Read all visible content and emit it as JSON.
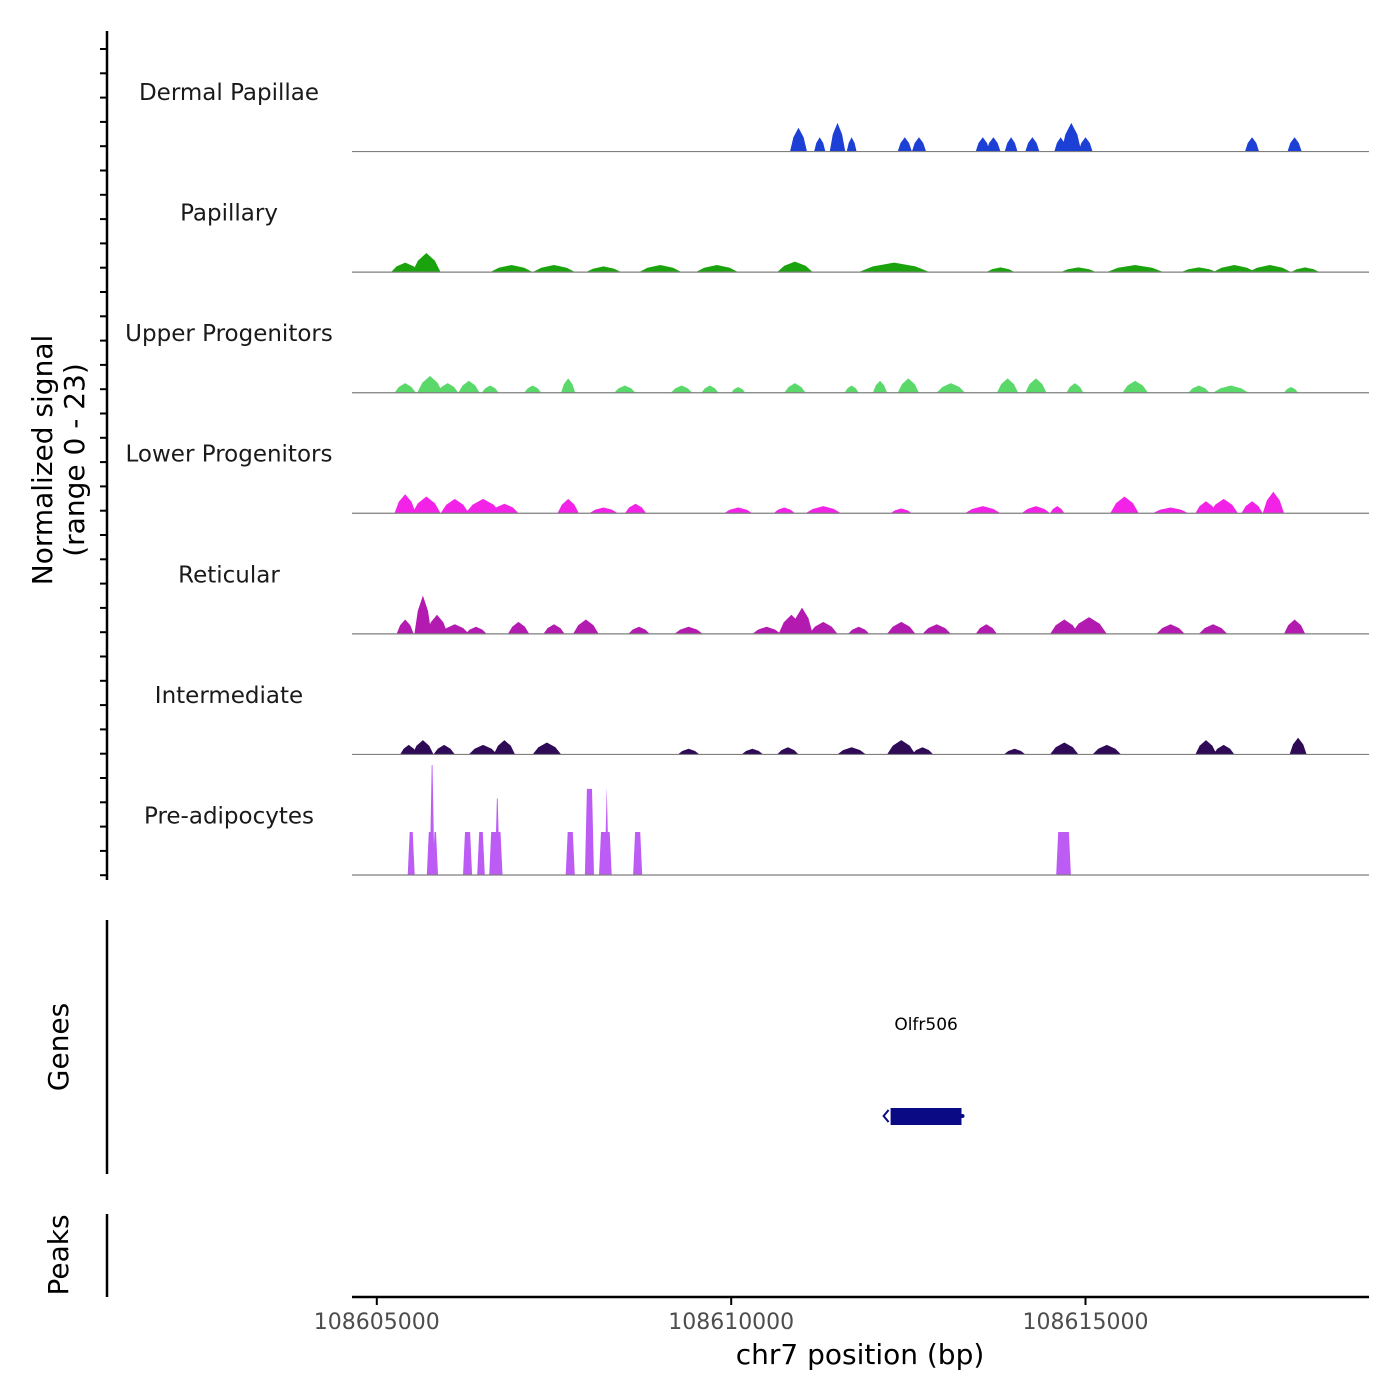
{
  "chart_data": {
    "type": "area",
    "panel": "coverage",
    "ylabel": "Normalized signal",
    "ylabel_range": "(range 0 - 23)",
    "ylim": [
      0,
      23
    ],
    "xlabel": "chr7 position (bp)",
    "xlim": [
      108604650,
      108619000
    ],
    "xticks": [
      108605000,
      108610000,
      108615000
    ],
    "xtick_labels": [
      "108605000",
      "108610000",
      "108615000"
    ],
    "baseline_color": "#7f7f7f",
    "tracks": [
      {
        "name": "Dermal Papillae",
        "color": "#1c3fd6",
        "peaks": [
          [
            108610950,
            5,
            120
          ],
          [
            108611250,
            3,
            80
          ],
          [
            108611500,
            6,
            110
          ],
          [
            108611700,
            3,
            70
          ],
          [
            108612450,
            3,
            100
          ],
          [
            108612650,
            3,
            100
          ],
          [
            108613550,
            3,
            100
          ],
          [
            108613700,
            3,
            100
          ],
          [
            108613950,
            3,
            90
          ],
          [
            108614250,
            3,
            100
          ],
          [
            108614650,
            3,
            90
          ],
          [
            108614800,
            6,
            140
          ],
          [
            108615000,
            3,
            100
          ],
          [
            108617350,
            3,
            100
          ],
          [
            108617950,
            3,
            100
          ]
        ]
      },
      {
        "name": "Papillary",
        "color": "#1aa30c",
        "peaks": [
          [
            108605700,
            4,
            200
          ],
          [
            108605400,
            2,
            200
          ],
          [
            108606900,
            1.5,
            300
          ],
          [
            108607500,
            1.5,
            300
          ],
          [
            108608200,
            1.2,
            250
          ],
          [
            108609000,
            1.5,
            300
          ],
          [
            108609800,
            1.5,
            300
          ],
          [
            108610900,
            2.2,
            250
          ],
          [
            108612300,
            2,
            500
          ],
          [
            108613800,
            1,
            200
          ],
          [
            108614900,
            1,
            250
          ],
          [
            108615700,
            1.5,
            400
          ],
          [
            108616600,
            1,
            250
          ],
          [
            108617100,
            1.5,
            300
          ],
          [
            108617600,
            1.5,
            300
          ],
          [
            108618100,
            1,
            200
          ]
        ]
      },
      {
        "name": "Upper Progenitors",
        "color": "#5ad96a",
        "peaks": [
          [
            108605400,
            2,
            150
          ],
          [
            108605750,
            3.5,
            180
          ],
          [
            108606000,
            2,
            150
          ],
          [
            108606300,
            2.5,
            150
          ],
          [
            108606600,
            1.5,
            120
          ],
          [
            108607200,
            1.5,
            120
          ],
          [
            108607700,
            3,
            100
          ],
          [
            108608500,
            1.5,
            150
          ],
          [
            108609300,
            1.5,
            150
          ],
          [
            108609700,
            1.5,
            120
          ],
          [
            108610100,
            1.2,
            100
          ],
          [
            108610900,
            2,
            150
          ],
          [
            108611700,
            1.5,
            100
          ],
          [
            108612100,
            2.5,
            100
          ],
          [
            108612500,
            3,
            150
          ],
          [
            108613100,
            2,
            200
          ],
          [
            108613900,
            3,
            150
          ],
          [
            108614300,
            3,
            150
          ],
          [
            108614850,
            2,
            120
          ],
          [
            108615700,
            2.5,
            180
          ],
          [
            108616600,
            1.5,
            150
          ],
          [
            108617050,
            1.5,
            250
          ],
          [
            108617900,
            1.2,
            100
          ]
        ]
      },
      {
        "name": "Lower Progenitors",
        "color": "#f222e6",
        "peaks": [
          [
            108605400,
            4,
            150
          ],
          [
            108605700,
            3.5,
            200
          ],
          [
            108606100,
            3,
            200
          ],
          [
            108606500,
            3,
            250
          ],
          [
            108606800,
            2,
            200
          ],
          [
            108607700,
            3,
            150
          ],
          [
            108608200,
            1.2,
            200
          ],
          [
            108608650,
            2,
            150
          ],
          [
            108610100,
            1.2,
            200
          ],
          [
            108610750,
            1.2,
            150
          ],
          [
            108611300,
            1.5,
            250
          ],
          [
            108612400,
            1,
            150
          ],
          [
            108613550,
            1.5,
            250
          ],
          [
            108614300,
            1.5,
            200
          ],
          [
            108614600,
            1.5,
            100
          ],
          [
            108615550,
            3.5,
            200
          ],
          [
            108616200,
            1.2,
            250
          ],
          [
            108616700,
            2.5,
            150
          ],
          [
            108616950,
            3,
            200
          ],
          [
            108617350,
            2.5,
            150
          ],
          [
            108617650,
            4.5,
            150
          ]
        ]
      },
      {
        "name": "Reticular",
        "color": "#b31bb0",
        "peaks": [
          [
            108605400,
            3,
            120
          ],
          [
            108605650,
            8,
            120
          ],
          [
            108605850,
            4,
            150
          ],
          [
            108606100,
            2,
            200
          ],
          [
            108606400,
            1.5,
            150
          ],
          [
            108607000,
            2.5,
            150
          ],
          [
            108607500,
            2,
            150
          ],
          [
            108607950,
            3,
            180
          ],
          [
            108608700,
            1.5,
            150
          ],
          [
            108609400,
            1.5,
            200
          ],
          [
            108610500,
            1.5,
            200
          ],
          [
            108610850,
            4,
            180
          ],
          [
            108611000,
            5.5,
            150
          ],
          [
            108611300,
            2.5,
            200
          ],
          [
            108611800,
            1.5,
            150
          ],
          [
            108612400,
            2.5,
            200
          ],
          [
            108612900,
            2,
            200
          ],
          [
            108613600,
            2,
            150
          ],
          [
            108614700,
            3,
            200
          ],
          [
            108615050,
            3.5,
            250
          ],
          [
            108616200,
            2,
            200
          ],
          [
            108616800,
            2,
            200
          ],
          [
            108617950,
            3,
            150
          ]
        ]
      },
      {
        "name": "Intermediate",
        "color": "#2e0a57",
        "peaks": [
          [
            108605450,
            2,
            120
          ],
          [
            108605650,
            3,
            150
          ],
          [
            108605950,
            2,
            150
          ],
          [
            108606500,
            2,
            200
          ],
          [
            108606800,
            3,
            150
          ],
          [
            108607400,
            2.5,
            200
          ],
          [
            108609400,
            1.2,
            150
          ],
          [
            108610300,
            1.2,
            150
          ],
          [
            108610800,
            1.5,
            150
          ],
          [
            108611700,
            1.5,
            200
          ],
          [
            108612400,
            3,
            200
          ],
          [
            108612700,
            1.5,
            150
          ],
          [
            108614000,
            1.2,
            150
          ],
          [
            108614700,
            2.5,
            200
          ],
          [
            108615300,
            2,
            200
          ],
          [
            108616700,
            3,
            150
          ],
          [
            108616950,
            2,
            150
          ],
          [
            108618000,
            3.5,
            120
          ]
        ]
      },
      {
        "name": "Pre-adipocytes",
        "color": "#bc5cf5",
        "bars": [
          [
            108605450,
            108605520,
            9
          ],
          [
            108605720,
            108605810,
            9
          ],
          [
            108605760,
            108605800,
            23
          ],
          [
            108605800,
            108605850,
            9
          ],
          [
            108606230,
            108606330,
            9
          ],
          [
            108606430,
            108606510,
            9
          ],
          [
            108606600,
            108606760,
            9
          ],
          [
            108606680,
            108606720,
            16
          ],
          [
            108607680,
            108607780,
            9
          ],
          [
            108607950,
            108608050,
            18
          ],
          [
            108608150,
            108608300,
            9
          ],
          [
            108608230,
            108608260,
            18
          ],
          [
            108608630,
            108608730,
            9
          ],
          [
            108614600,
            108614780,
            9
          ]
        ]
      }
    ],
    "genes_label": "Genes",
    "genes": [
      {
        "name": "Olfr506",
        "start": 108612250,
        "end": 108613250,
        "strand": "-",
        "color": "#0a0a85"
      }
    ],
    "peaks_label": "Peaks",
    "peaks": []
  }
}
